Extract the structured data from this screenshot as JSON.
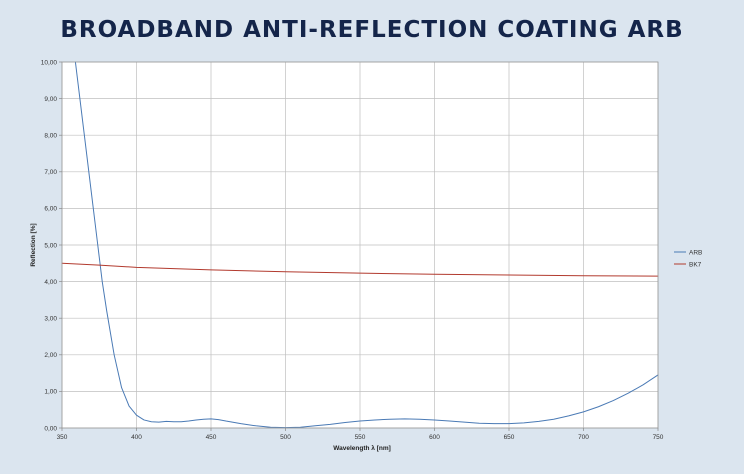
{
  "chart_data": {
    "type": "line",
    "title": "BROADBAND ANTI-REFLECTION COATING ARB",
    "xlabel": "Wavelength λ [nm]",
    "ylabel": "Reflection [%]",
    "xlim": [
      350,
      750
    ],
    "ylim": [
      0,
      10
    ],
    "x_ticks": [
      "350",
      "400",
      "450",
      "500",
      "550",
      "600",
      "650",
      "700",
      "750"
    ],
    "y_ticks": [
      "0,00",
      "1,00",
      "2,00",
      "3,00",
      "4,00",
      "5,00",
      "6,00",
      "7,00",
      "8,00",
      "9,00",
      "10,00"
    ],
    "grid": true,
    "legend_position": "right",
    "series": [
      {
        "name": "ARB",
        "color": "#4a7ab5",
        "points": [
          [
            359,
            10.0
          ],
          [
            362,
            9.0
          ],
          [
            365,
            8.0
          ],
          [
            368,
            7.0
          ],
          [
            371,
            6.0
          ],
          [
            374,
            5.0
          ],
          [
            377,
            4.0
          ],
          [
            380,
            3.2
          ],
          [
            385,
            2.0
          ],
          [
            390,
            1.1
          ],
          [
            395,
            0.6
          ],
          [
            400,
            0.35
          ],
          [
            405,
            0.22
          ],
          [
            410,
            0.17
          ],
          [
            415,
            0.16
          ],
          [
            420,
            0.18
          ],
          [
            425,
            0.17
          ],
          [
            430,
            0.17
          ],
          [
            435,
            0.19
          ],
          [
            440,
            0.22
          ],
          [
            445,
            0.24
          ],
          [
            450,
            0.25
          ],
          [
            455,
            0.23
          ],
          [
            460,
            0.19
          ],
          [
            470,
            0.12
          ],
          [
            480,
            0.06
          ],
          [
            490,
            0.02
          ],
          [
            500,
            0.01
          ],
          [
            510,
            0.02
          ],
          [
            520,
            0.06
          ],
          [
            530,
            0.1
          ],
          [
            540,
            0.15
          ],
          [
            550,
            0.19
          ],
          [
            560,
            0.22
          ],
          [
            570,
            0.24
          ],
          [
            580,
            0.25
          ],
          [
            590,
            0.24
          ],
          [
            600,
            0.22
          ],
          [
            610,
            0.19
          ],
          [
            620,
            0.16
          ],
          [
            630,
            0.13
          ],
          [
            640,
            0.12
          ],
          [
            650,
            0.12
          ],
          [
            660,
            0.14
          ],
          [
            670,
            0.18
          ],
          [
            680,
            0.24
          ],
          [
            690,
            0.33
          ],
          [
            700,
            0.44
          ],
          [
            710,
            0.58
          ],
          [
            720,
            0.75
          ],
          [
            730,
            0.95
          ],
          [
            740,
            1.18
          ],
          [
            750,
            1.45
          ]
        ]
      },
      {
        "name": "BK7",
        "color": "#b23a2e",
        "points": [
          [
            350,
            4.5
          ],
          [
            375,
            4.45
          ],
          [
            400,
            4.39
          ],
          [
            450,
            4.32
          ],
          [
            500,
            4.27
          ],
          [
            550,
            4.23
          ],
          [
            600,
            4.2
          ],
          [
            650,
            4.18
          ],
          [
            700,
            4.16
          ],
          [
            750,
            4.15
          ]
        ]
      }
    ]
  }
}
